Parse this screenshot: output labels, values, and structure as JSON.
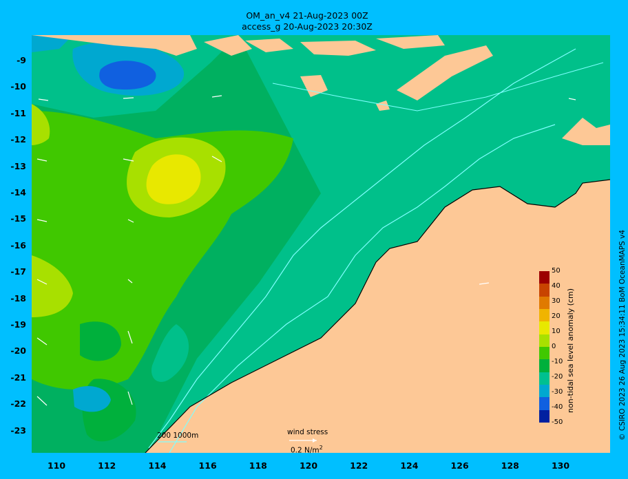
{
  "title": {
    "line1": "OM_an_v4  21-Aug-2023 00Z",
    "line2": "access_g 20-Aug-2023 20:30Z"
  },
  "y_axis": {
    "labels": [
      "-9",
      "-10",
      "-11",
      "-12",
      "-13",
      "-14",
      "-15",
      "-16",
      "-17",
      "-18",
      "-19",
      "-20",
      "-21",
      "-22",
      "-23"
    ]
  },
  "x_axis": {
    "labels": [
      "110",
      "112",
      "114",
      "116",
      "118",
      "120",
      "122",
      "124",
      "126",
      "128",
      "130"
    ]
  },
  "colorbar": {
    "label": "non-tidal sea level anomaly (cm)",
    "ticks": [
      "50",
      "40",
      "30",
      "20",
      "10",
      "0",
      "-10",
      "-20",
      "-30",
      "-40",
      "-50"
    ],
    "colors": [
      "#9c0000",
      "#c84400",
      "#e07a00",
      "#f0b400",
      "#e8e800",
      "#a8e000",
      "#40c800",
      "#00b03c",
      "#00c090",
      "#00a8d0",
      "#1060e0",
      "#0020a0"
    ]
  },
  "legend": {
    "isobaths_label": "200  1000m",
    "wind_label": "wind stress",
    "wind_unit": "0.2 N/m",
    "wind_unit_sup": "2"
  },
  "credit": "© CSIRO 2023  26 Aug 2023 15:34:11 BoM OceanMAPS v4",
  "colors": {
    "background": "#00bfff",
    "land": "#fdc896",
    "isobath": "#7fffff"
  }
}
